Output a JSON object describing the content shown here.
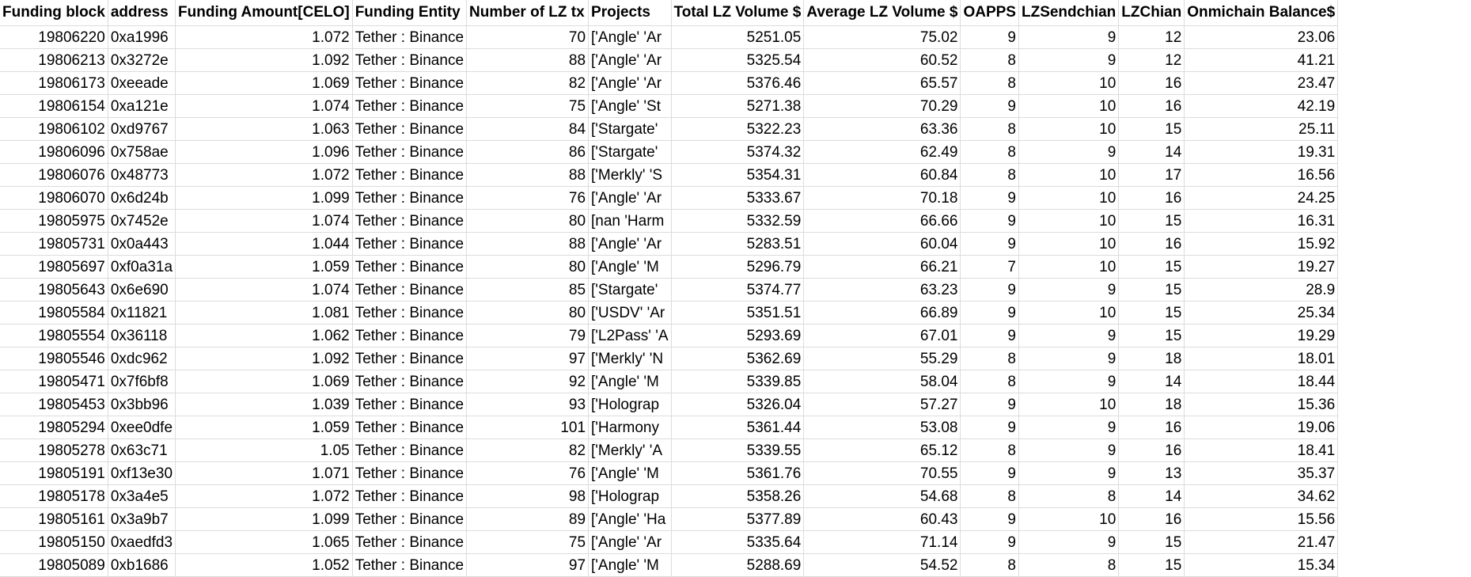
{
  "sheet": {
    "headers": [
      "Funding block",
      "address",
      "Funding Amount[CELO]",
      "Funding Entity",
      "Number of LZ tx",
      "Projects",
      "Total LZ Volume $",
      "Average LZ Volume $",
      "OAPPS",
      "LZSendchian",
      "LZChian",
      "Onmichain Balance$"
    ],
    "rows": [
      [
        "19806220",
        "0xa1996",
        "1.072",
        "Tether : Binance",
        "70",
        "['Angle' 'Ar",
        "5251.05",
        "75.02",
        "9",
        "9",
        "12",
        "23.06"
      ],
      [
        "19806213",
        "0x3272e",
        "1.092",
        "Tether : Binance",
        "88",
        "['Angle' 'Ar",
        "5325.54",
        "60.52",
        "8",
        "9",
        "12",
        "41.21"
      ],
      [
        "19806173",
        "0xeeade",
        "1.069",
        "Tether : Binance",
        "82",
        "['Angle' 'Ar",
        "5376.46",
        "65.57",
        "8",
        "10",
        "16",
        "23.47"
      ],
      [
        "19806154",
        "0xa121e",
        "1.074",
        "Tether : Binance",
        "75",
        "['Angle' 'St",
        "5271.38",
        "70.29",
        "9",
        "10",
        "16",
        "42.19"
      ],
      [
        "19806102",
        "0xd9767",
        "1.063",
        "Tether : Binance",
        "84",
        "['Stargate'",
        "5322.23",
        "63.36",
        "8",
        "10",
        "15",
        "25.11"
      ],
      [
        "19806096",
        "0x758ae",
        "1.096",
        "Tether : Binance",
        "86",
        "['Stargate'",
        "5374.32",
        "62.49",
        "8",
        "9",
        "14",
        "19.31"
      ],
      [
        "19806076",
        "0x48773",
        "1.072",
        "Tether : Binance",
        "88",
        "['Merkly' 'S",
        "5354.31",
        "60.84",
        "8",
        "10",
        "17",
        "16.56"
      ],
      [
        "19806070",
        "0x6d24b",
        "1.099",
        "Tether : Binance",
        "76",
        "['Angle' 'Ar",
        "5333.67",
        "70.18",
        "9",
        "10",
        "16",
        "24.25"
      ],
      [
        "19805975",
        "0x7452e",
        "1.074",
        "Tether : Binance",
        "80",
        "[nan 'Harm",
        "5332.59",
        "66.66",
        "9",
        "10",
        "15",
        "16.31"
      ],
      [
        "19805731",
        "0x0a443",
        "1.044",
        "Tether : Binance",
        "88",
        "['Angle' 'Ar",
        "5283.51",
        "60.04",
        "9",
        "10",
        "16",
        "15.92"
      ],
      [
        "19805697",
        "0xf0a31a",
        "1.059",
        "Tether : Binance",
        "80",
        "['Angle' 'M",
        "5296.79",
        "66.21",
        "7",
        "10",
        "15",
        "19.27"
      ],
      [
        "19805643",
        "0x6e690",
        "1.074",
        "Tether : Binance",
        "85",
        "['Stargate'",
        "5374.77",
        "63.23",
        "9",
        "9",
        "15",
        "28.9"
      ],
      [
        "19805584",
        "0x11821",
        "1.081",
        "Tether : Binance",
        "80",
        "['USDV' 'Ar",
        "5351.51",
        "66.89",
        "9",
        "10",
        "15",
        "25.34"
      ],
      [
        "19805554",
        "0x36118",
        "1.062",
        "Tether : Binance",
        "79",
        "['L2Pass' 'A",
        "5293.69",
        "67.01",
        "9",
        "9",
        "15",
        "19.29"
      ],
      [
        "19805546",
        "0xdc962",
        "1.092",
        "Tether : Binance",
        "97",
        "['Merkly' 'N",
        "5362.69",
        "55.29",
        "8",
        "9",
        "18",
        "18.01"
      ],
      [
        "19805471",
        "0x7f6bf8",
        "1.069",
        "Tether : Binance",
        "92",
        "['Angle' 'M",
        "5339.85",
        "58.04",
        "8",
        "9",
        "14",
        "18.44"
      ],
      [
        "19805453",
        "0x3bb96",
        "1.039",
        "Tether : Binance",
        "93",
        "['Holograp",
        "5326.04",
        "57.27",
        "9",
        "10",
        "18",
        "15.36"
      ],
      [
        "19805294",
        "0xee0dfe",
        "1.059",
        "Tether : Binance",
        "101",
        "['Harmony",
        "5361.44",
        "53.08",
        "9",
        "9",
        "16",
        "19.06"
      ],
      [
        "19805278",
        "0x63c71",
        "1.05",
        "Tether : Binance",
        "82",
        "['Merkly' 'A",
        "5339.55",
        "65.12",
        "8",
        "9",
        "16",
        "18.41"
      ],
      [
        "19805191",
        "0xf13e30",
        "1.071",
        "Tether : Binance",
        "76",
        "['Angle' 'M",
        "5361.76",
        "70.55",
        "9",
        "9",
        "13",
        "35.37"
      ],
      [
        "19805178",
        "0x3a4e5",
        "1.072",
        "Tether : Binance",
        "98",
        "['Holograp",
        "5358.26",
        "54.68",
        "8",
        "8",
        "14",
        "34.62"
      ],
      [
        "19805161",
        "0x3a9b7",
        "1.099",
        "Tether : Binance",
        "89",
        "['Angle' 'Ha",
        "5377.89",
        "60.43",
        "9",
        "10",
        "16",
        "15.56"
      ],
      [
        "19805150",
        "0xaedfd3",
        "1.065",
        "Tether : Binance",
        "75",
        "['Angle' 'Ar",
        "5335.64",
        "71.14",
        "9",
        "9",
        "15",
        "21.47"
      ],
      [
        "19805089",
        "0xb1686",
        "1.052",
        "Tether : Binance",
        "97",
        "['Angle' 'M",
        "5288.69",
        "54.52",
        "8",
        "8",
        "15",
        "15.34"
      ]
    ]
  }
}
